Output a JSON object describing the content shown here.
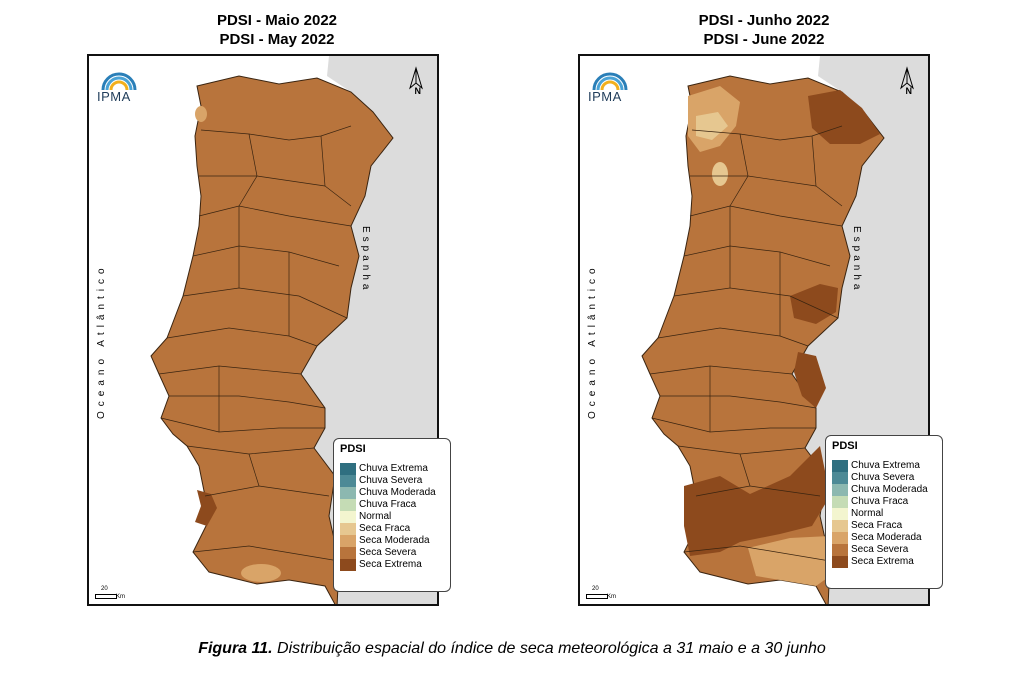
{
  "maps": [
    {
      "title_pt": "PDSI - Maio 2022",
      "title_en": "PDSI - May 2022",
      "logo_text": "IPMA",
      "north_label": "N",
      "ocean_label": "Oceano Atlântico",
      "spain_label": "Espanha",
      "scale_value": "20",
      "scale_unit": "Km",
      "legend_title": "PDSI",
      "legend": [
        {
          "label": "Chuva Extrema",
          "color": "#2f6f80"
        },
        {
          "label": "Chuva Severa",
          "color": "#4d8a96"
        },
        {
          "label": "Chuva Moderada",
          "color": "#8cb8b0"
        },
        {
          "label": "Chuva Fraca",
          "color": "#c5dcb5"
        },
        {
          "label": "Normal",
          "color": "#f3f5cf"
        },
        {
          "label": "Seca Fraca",
          "color": "#e6c790"
        },
        {
          "label": "Seca Moderada",
          "color": "#d9a468"
        },
        {
          "label": "Seca Severa",
          "color": "#b8743c"
        },
        {
          "label": "Seca Extrema",
          "color": "#8d4a1d"
        }
      ]
    },
    {
      "title_pt": "PDSI - Junho 2022",
      "title_en": "PDSI - June 2022",
      "logo_text": "IPMA",
      "north_label": "N",
      "ocean_label": "Oceano Atlântico",
      "spain_label": "Espanha",
      "scale_value": "20",
      "scale_unit": "Km",
      "legend_title": "PDSI",
      "legend": [
        {
          "label": "Chuva Extrema",
          "color": "#2f6f80"
        },
        {
          "label": "Chuva Severa",
          "color": "#4d8a96"
        },
        {
          "label": "Chuva Moderada",
          "color": "#8cb8b0"
        },
        {
          "label": "Chuva Fraca",
          "color": "#c5dcb5"
        },
        {
          "label": "Normal",
          "color": "#f3f5cf"
        },
        {
          "label": "Seca Fraca",
          "color": "#e6c790"
        },
        {
          "label": "Seca Moderada",
          "color": "#d9a468"
        },
        {
          "label": "Seca Severa",
          "color": "#b8743c"
        },
        {
          "label": "Seca Extrema",
          "color": "#8d4a1d"
        }
      ]
    }
  ],
  "caption": {
    "label": "Figura 11.",
    "text": " Distribuição espacial do índice de seca meteorológica a 31 maio e a 30 junho"
  },
  "colors": {
    "spain_fill": "#dcdcdc",
    "district_lines": "#3a2410"
  }
}
